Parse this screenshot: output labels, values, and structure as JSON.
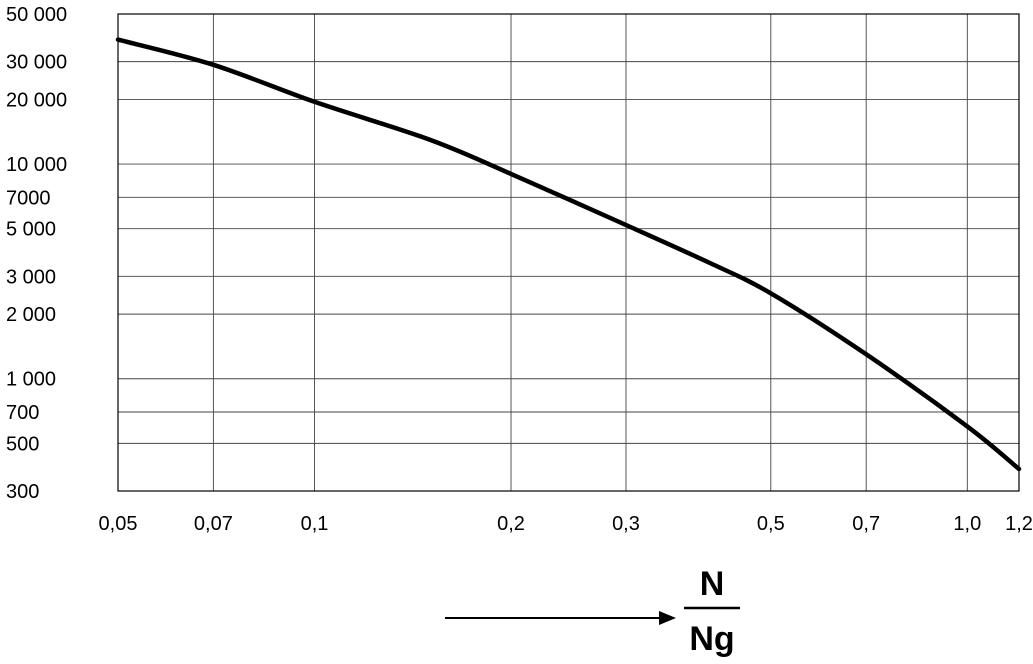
{
  "chart_data": {
    "type": "line",
    "x_scale": "log",
    "y_scale": "log",
    "xlim": [
      0.05,
      1.2
    ],
    "ylim": [
      300,
      50000
    ],
    "grid": true,
    "x_ticks": [
      {
        "value": 0.05,
        "label": "0,05"
      },
      {
        "value": 0.07,
        "label": "0,07"
      },
      {
        "value": 0.1,
        "label": "0,1"
      },
      {
        "value": 0.2,
        "label": "0,2"
      },
      {
        "value": 0.3,
        "label": "0,3"
      },
      {
        "value": 0.5,
        "label": "0,5"
      },
      {
        "value": 0.7,
        "label": "0,7"
      },
      {
        "value": 1.0,
        "label": "1,0"
      },
      {
        "value": 1.2,
        "label": "1,2"
      }
    ],
    "y_ticks": [
      {
        "value": 300,
        "label": "300"
      },
      {
        "value": 500,
        "label": "500"
      },
      {
        "value": 700,
        "label": "700"
      },
      {
        "value": 1000,
        "label": "1 000"
      },
      {
        "value": 2000,
        "label": "2 000"
      },
      {
        "value": 3000,
        "label": "3 000"
      },
      {
        "value": 5000,
        "label": "5 000"
      },
      {
        "value": 7000,
        "label": "7000"
      },
      {
        "value": 10000,
        "label": "10 000"
      },
      {
        "value": 20000,
        "label": "20 000"
      },
      {
        "value": 30000,
        "label": "30 000"
      },
      {
        "value": 50000,
        "label": "50 000"
      }
    ],
    "series": [
      {
        "color": "#000000",
        "x": [
          0.05,
          0.07,
          0.1,
          0.15,
          0.2,
          0.3,
          0.4,
          0.5,
          0.7,
          1.0,
          1.2
        ],
        "y": [
          38000,
          29000,
          19500,
          13000,
          9000,
          5200,
          3500,
          2500,
          1300,
          600,
          380
        ]
      }
    ],
    "xlabel": {
      "numerator": "N",
      "denominator": "Ng"
    }
  }
}
